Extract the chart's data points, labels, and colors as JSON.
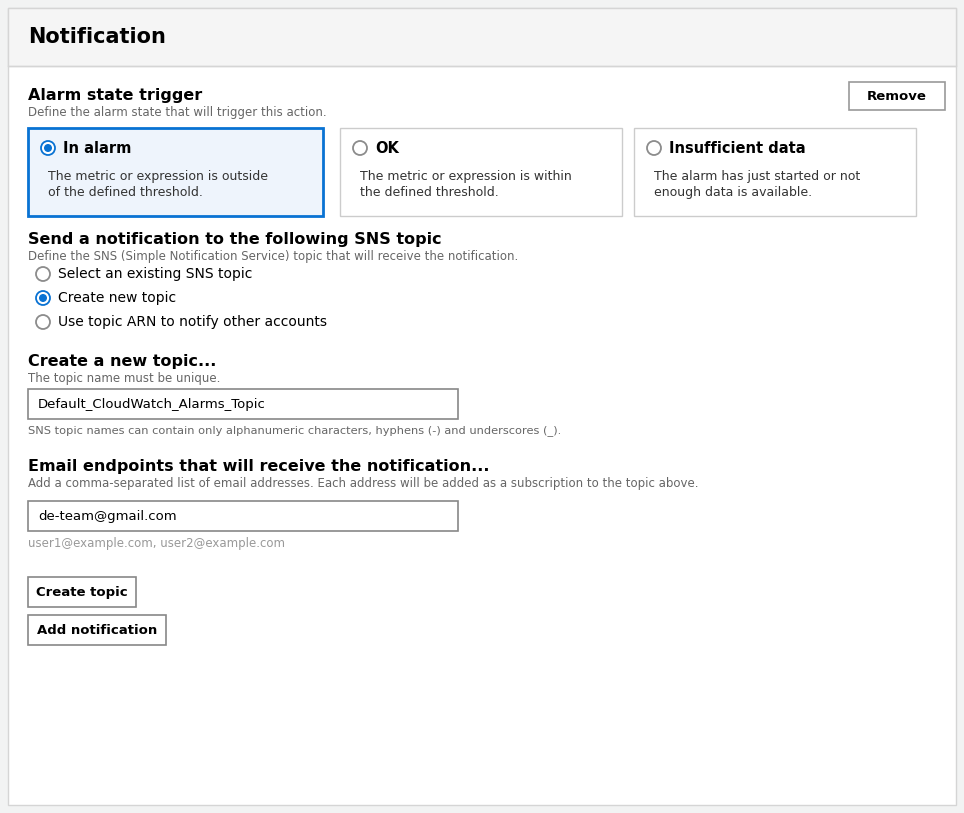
{
  "title": "Notification",
  "bg_color": "#f2f3f3",
  "panel_color": "#ffffff",
  "header_bg": "#f5f5f5",
  "border_color": "#d5d5d5",
  "blue_border": "#0972d3",
  "blue_fill": "#eef4fc",
  "blue_radio_color": "#0972d3",
  "alarm_trigger_label": "Alarm state trigger",
  "alarm_trigger_sub": "Define the alarm state that will trigger this action.",
  "radio_options": [
    {
      "label": "In alarm",
      "desc_line1": "The metric or expression is outside",
      "desc_line2": "of the defined threshold.",
      "selected": true
    },
    {
      "label": "OK",
      "desc_line1": "The metric or expression is within",
      "desc_line2": "the defined threshold.",
      "selected": false
    },
    {
      "label": "Insufficient data",
      "desc_line1": "The alarm has just started or not",
      "desc_line2": "enough data is available.",
      "selected": false
    }
  ],
  "sns_title": "Send a notification to the following SNS topic",
  "sns_sub": "Define the SNS (Simple Notification Service) topic that will receive the notification.",
  "sns_options": [
    {
      "label": "Select an existing SNS topic",
      "selected": false
    },
    {
      "label": "Create new topic",
      "selected": true
    },
    {
      "label": "Use topic ARN to notify other accounts",
      "selected": false
    }
  ],
  "new_topic_label": "Create a new topic...",
  "new_topic_sub": "The topic name must be unique.",
  "new_topic_value": "Default_CloudWatch_Alarms_Topic",
  "new_topic_hint": "SNS topic names can contain only alphanumeric characters, hyphens (-) and underscores (_).",
  "email_label": "Email endpoints that will receive the notification...",
  "email_sub": "Add a comma-separated list of email addresses. Each address will be added as a subscription to the topic above.",
  "email_value": "de-team@gmail.com",
  "email_hint": "user1@example.com, user2@example.com",
  "btn_create": "Create topic",
  "btn_add": "Add notification",
  "btn_remove": "Remove"
}
